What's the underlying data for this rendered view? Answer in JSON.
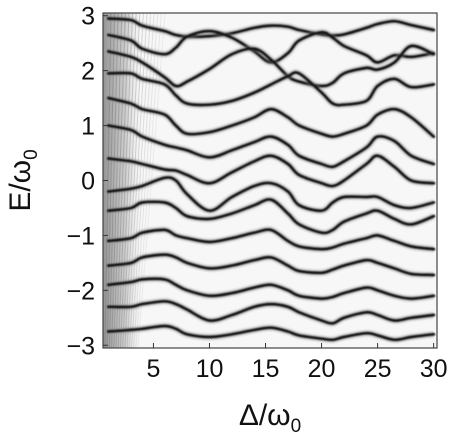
{
  "chart_data": {
    "type": "heatmap",
    "title": "",
    "xlabel": "Δ/ω",
    "xlabel_sub": "0",
    "ylabel": "E/ω",
    "ylabel_sub": "0",
    "xlim": [
      0.5,
      30.3
    ],
    "ylim": [
      -3.05,
      3.05
    ],
    "xticks": [
      5,
      10,
      15,
      20,
      25,
      30
    ],
    "yticks": [
      3,
      2,
      1,
      0,
      -1,
      -2,
      -3
    ],
    "xtick_labels": [
      "5",
      "10",
      "15",
      "20",
      "25",
      "30"
    ],
    "ytick_labels": [
      "3",
      "2",
      "1",
      "0",
      "−1",
      "−2",
      "−3"
    ],
    "colormap": [
      "#ffffff",
      "#111111"
    ],
    "bands_sample_x": [
      1,
      3,
      4,
      6,
      7,
      8,
      10,
      12,
      14,
      15.5,
      17,
      18,
      20,
      21,
      22,
      24,
      25,
      26.5,
      28,
      30
    ],
    "bands": [
      {
        "name": "",
        "y": [
          2.95,
          2.92,
          2.82,
          2.72,
          2.65,
          2.62,
          2.63,
          2.68,
          2.78,
          2.82,
          2.8,
          2.74,
          2.66,
          2.64,
          2.66,
          2.78,
          2.85,
          2.9,
          2.83,
          2.74
        ]
      },
      {
        "name": "",
        "y": [
          2.65,
          2.55,
          2.4,
          2.3,
          2.42,
          2.62,
          2.72,
          2.6,
          2.35,
          2.15,
          2.32,
          2.55,
          2.7,
          2.6,
          2.45,
          2.28,
          2.15,
          2.28,
          2.25,
          2.32
        ]
      },
      {
        "name": "",
        "y": [
          2.35,
          2.25,
          2.15,
          1.88,
          1.72,
          1.8,
          2.03,
          2.3,
          2.4,
          2.2,
          1.9,
          1.8,
          1.72,
          1.78,
          1.95,
          2.05,
          2.02,
          2.15,
          2.45,
          2.3
        ]
      },
      {
        "name": "",
        "y": [
          1.95,
          1.95,
          1.85,
          1.75,
          1.55,
          1.4,
          1.38,
          1.45,
          1.6,
          1.75,
          1.9,
          1.95,
          1.6,
          1.4,
          1.38,
          1.45,
          1.72,
          1.85,
          1.7,
          1.75
        ]
      },
      {
        "name": "",
        "y": [
          1.5,
          1.4,
          1.3,
          1.2,
          1.0,
          0.85,
          0.88,
          1.0,
          1.15,
          1.3,
          1.15,
          1.0,
          0.85,
          0.8,
          0.85,
          1.0,
          1.2,
          1.3,
          1.15,
          0.8
        ]
      },
      {
        "name": "",
        "y": [
          1.0,
          0.92,
          0.8,
          0.65,
          0.6,
          0.55,
          0.42,
          0.55,
          0.7,
          0.8,
          0.65,
          0.45,
          0.3,
          0.25,
          0.35,
          0.6,
          0.8,
          0.72,
          0.45,
          0.3
        ]
      },
      {
        "name": "",
        "y": [
          0.4,
          0.35,
          0.3,
          0.2,
          0.18,
          0.1,
          -0.05,
          0.15,
          0.35,
          0.45,
          0.3,
          0.1,
          -0.05,
          -0.1,
          0.0,
          0.3,
          0.45,
          0.25,
          0.0,
          -0.05
        ]
      },
      {
        "name": "",
        "y": [
          -0.2,
          -0.15,
          -0.1,
          0.05,
          0.0,
          -0.25,
          -0.55,
          -0.3,
          -0.1,
          -0.05,
          -0.2,
          -0.45,
          -0.55,
          -0.4,
          -0.3,
          -0.3,
          -0.3,
          -0.45,
          -0.5,
          -0.4
        ]
      },
      {
        "name": "",
        "y": [
          -0.55,
          -0.5,
          -0.4,
          -0.4,
          -0.5,
          -0.65,
          -0.7,
          -0.6,
          -0.45,
          -0.35,
          -0.6,
          -0.8,
          -0.95,
          -0.9,
          -0.75,
          -0.6,
          -0.55,
          -0.7,
          -0.8,
          -0.65
        ]
      },
      {
        "name": "",
        "y": [
          -1.1,
          -1.05,
          -0.95,
          -0.9,
          -1.0,
          -1.05,
          -1.12,
          -1.05,
          -0.95,
          -0.9,
          -1.1,
          -1.2,
          -1.25,
          -1.22,
          -1.15,
          -1.05,
          -1.0,
          -1.1,
          -1.2,
          -1.25
        ]
      },
      {
        "name": "",
        "y": [
          -1.55,
          -1.5,
          -1.4,
          -1.35,
          -1.4,
          -1.5,
          -1.6,
          -1.55,
          -1.45,
          -1.4,
          -1.55,
          -1.65,
          -1.68,
          -1.62,
          -1.55,
          -1.45,
          -1.5,
          -1.6,
          -1.7,
          -1.72
        ]
      },
      {
        "name": "",
        "y": [
          -1.9,
          -1.85,
          -1.8,
          -1.8,
          -1.9,
          -2.0,
          -2.1,
          -2.05,
          -1.95,
          -1.9,
          -2.0,
          -2.1,
          -2.15,
          -2.12,
          -2.05,
          -1.95,
          -2.0,
          -2.1,
          -2.15,
          -2.1
        ]
      },
      {
        "name": "",
        "y": [
          -2.3,
          -2.3,
          -2.25,
          -2.2,
          -2.25,
          -2.35,
          -2.55,
          -2.45,
          -2.3,
          -2.25,
          -2.3,
          -2.4,
          -2.55,
          -2.6,
          -2.5,
          -2.4,
          -2.45,
          -2.55,
          -2.5,
          -2.45
        ]
      },
      {
        "name": "",
        "y": [
          -2.75,
          -2.72,
          -2.7,
          -2.65,
          -2.7,
          -2.8,
          -2.85,
          -2.8,
          -2.72,
          -2.68,
          -2.75,
          -2.82,
          -2.88,
          -2.9,
          -2.85,
          -2.78,
          -2.82,
          -2.9,
          -2.85,
          -2.8
        ]
      }
    ]
  }
}
